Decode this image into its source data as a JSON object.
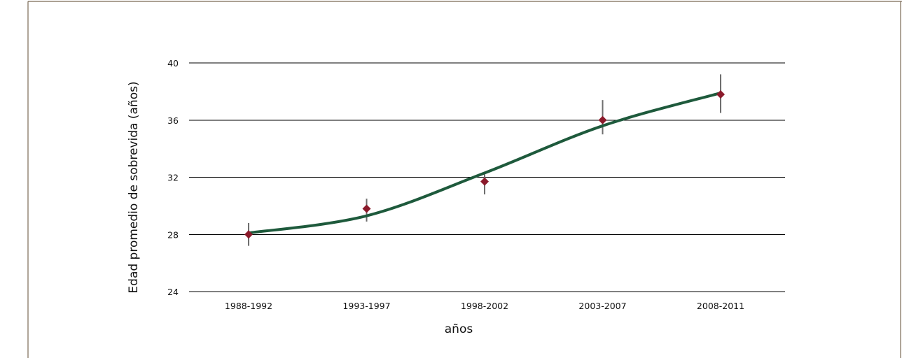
{
  "chart_data": {
    "type": "line",
    "title": "",
    "xlabel": "años",
    "ylabel": "Edad promedio de sobrevida (años)",
    "categories": [
      "1988-1992",
      "1993-1997",
      "1998-2002",
      "2003-2007",
      "2008-2011"
    ],
    "ylim": [
      24,
      40
    ],
    "yticks": [
      "24",
      "28",
      "32",
      "36",
      "40"
    ],
    "grid": true,
    "series": [
      {
        "values": [
          28.0,
          29.8,
          31.7,
          36.0,
          37.8
        ],
        "error_low": [
          27.2,
          28.9,
          30.8,
          35.0,
          36.5
        ],
        "error_high": [
          28.8,
          30.5,
          32.2,
          37.4,
          39.2
        ]
      }
    ],
    "trend_line": {
      "type": "smooth curve",
      "values": [
        28.1,
        29.3,
        32.3,
        35.6,
        37.9
      ]
    },
    "colors": {
      "points": "#8b1a2b",
      "trend": "#1e5a3c",
      "error_bars": "#6e6e6e",
      "grid": "#000000",
      "frame": "#7a6a55"
    }
  }
}
